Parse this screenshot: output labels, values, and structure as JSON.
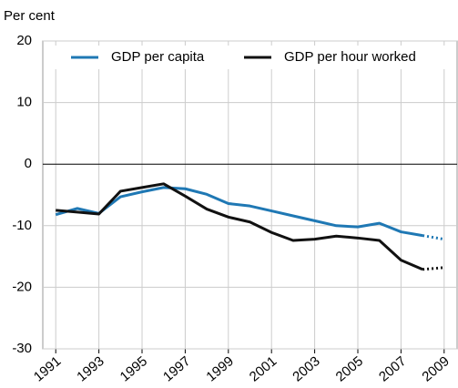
{
  "chart_data": {
    "type": "line",
    "y_label": "Per cent",
    "x": [
      1991,
      1992,
      1993,
      1994,
      1995,
      1996,
      1997,
      1998,
      1999,
      2000,
      2001,
      2002,
      2003,
      2004,
      2005,
      2006,
      2007,
      2008,
      2009
    ],
    "series": [
      {
        "name": "GDP per capita",
        "color": "#1f78b4",
        "values": [
          -8.2,
          -7.2,
          -8.0,
          -5.3,
          -4.5,
          -3.8,
          -4.0,
          -4.9,
          -6.4,
          -6.8,
          -7.6,
          -8.4,
          -9.2,
          -10.0,
          -10.2,
          -9.6,
          -11.0,
          -11.6,
          -12.2
        ]
      },
      {
        "name": "GDP per hour worked",
        "color": "#111111",
        "values": [
          -7.5,
          -7.8,
          -8.1,
          -4.4,
          -3.8,
          -3.2,
          -5.2,
          -7.3,
          -8.6,
          -9.4,
          -11.1,
          -12.4,
          -12.2,
          -11.7,
          -12.0,
          -12.4,
          -15.6,
          -17.1,
          -16.8
        ]
      }
    ],
    "dotted_from": 2008,
    "xlim": [
      1990.4,
      2009.6
    ],
    "xticks": [
      1991,
      1993,
      1995,
      1997,
      1999,
      2001,
      2003,
      2005,
      2007,
      2009
    ],
    "ylim": [
      -30,
      20
    ],
    "yticks": [
      -30,
      -20,
      -10,
      0,
      10,
      20
    ],
    "grid": true
  }
}
